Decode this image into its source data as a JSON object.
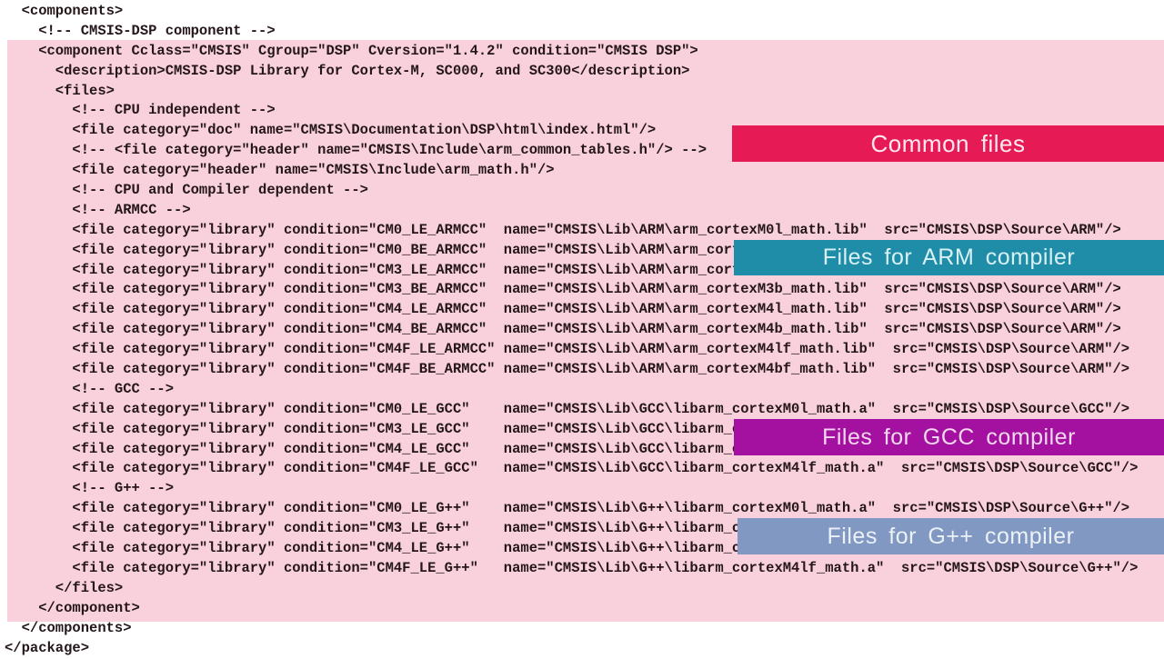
{
  "code_text_color": "#241619",
  "highlight": {
    "color": "#f8d1dc"
  },
  "code": {
    "lines": [
      "  <components>",
      "    <!-- CMSIS-DSP component -->",
      "    <component Cclass=\"CMSIS\" Cgroup=\"DSP\" Cversion=\"1.4.2\" condition=\"CMSIS DSP\">",
      "      <description>CMSIS-DSP Library for Cortex-M, SC000, and SC300</description>",
      "      <files>",
      "        <!-- CPU independent -->",
      "        <file category=\"doc\" name=\"CMSIS\\Documentation\\DSP\\html\\index.html\"/>",
      "        <!-- <file category=\"header\" name=\"CMSIS\\Include\\arm_common_tables.h\"/> -->",
      "        <file category=\"header\" name=\"CMSIS\\Include\\arm_math.h\"/>",
      "        <!-- CPU and Compiler dependent -->",
      "        <!-- ARMCC -->",
      "        <file category=\"library\" condition=\"CM0_LE_ARMCC\"  name=\"CMSIS\\Lib\\ARM\\arm_cortexM0l_math.lib\"  src=\"CMSIS\\DSP\\Source\\ARM\"/>",
      "        <file category=\"library\" condition=\"CM0_BE_ARMCC\"  name=\"CMSIS\\Lib\\ARM\\arm_cortexM0b_math.lib\"  src=\"CMSIS\\DSP\\Source\\ARM\"/>",
      "        <file category=\"library\" condition=\"CM3_LE_ARMCC\"  name=\"CMSIS\\Lib\\ARM\\arm_cortexM3l_math.lib\"  src=\"CMSIS\\DSP\\Source\\ARM\"/>",
      "        <file category=\"library\" condition=\"CM3_BE_ARMCC\"  name=\"CMSIS\\Lib\\ARM\\arm_cortexM3b_math.lib\"  src=\"CMSIS\\DSP\\Source\\ARM\"/>",
      "        <file category=\"library\" condition=\"CM4_LE_ARMCC\"  name=\"CMSIS\\Lib\\ARM\\arm_cortexM4l_math.lib\"  src=\"CMSIS\\DSP\\Source\\ARM\"/>",
      "        <file category=\"library\" condition=\"CM4_BE_ARMCC\"  name=\"CMSIS\\Lib\\ARM\\arm_cortexM4b_math.lib\"  src=\"CMSIS\\DSP\\Source\\ARM\"/>",
      "        <file category=\"library\" condition=\"CM4F_LE_ARMCC\" name=\"CMSIS\\Lib\\ARM\\arm_cortexM4lf_math.lib\"  src=\"CMSIS\\DSP\\Source\\ARM\"/>",
      "        <file category=\"library\" condition=\"CM4F_BE_ARMCC\" name=\"CMSIS\\Lib\\ARM\\arm_cortexM4bf_math.lib\"  src=\"CMSIS\\DSP\\Source\\ARM\"/>",
      "        <!-- GCC -->",
      "        <file category=\"library\" condition=\"CM0_LE_GCC\"    name=\"CMSIS\\Lib\\GCC\\libarm_cortexM0l_math.a\"  src=\"CMSIS\\DSP\\Source\\GCC\"/>",
      "        <file category=\"library\" condition=\"CM3_LE_GCC\"    name=\"CMSIS\\Lib\\GCC\\libarm_cortexM3l_math.a\"  src=\"CMSIS\\DSP\\Source\\GCC\"/>",
      "        <file category=\"library\" condition=\"CM4_LE_GCC\"    name=\"CMSIS\\Lib\\GCC\\libarm_cortexM4l_math.a\"  src=\"CMSIS\\DSP\\Source\\GCC\"/>",
      "        <file category=\"library\" condition=\"CM4F_LE_GCC\"   name=\"CMSIS\\Lib\\GCC\\libarm_cortexM4lf_math.a\"  src=\"CMSIS\\DSP\\Source\\GCC\"/>",
      "        <!-- G++ -->",
      "        <file category=\"library\" condition=\"CM0_LE_G++\"    name=\"CMSIS\\Lib\\G++\\libarm_cortexM0l_math.a\"  src=\"CMSIS\\DSP\\Source\\G++\"/>",
      "        <file category=\"library\" condition=\"CM3_LE_G++\"    name=\"CMSIS\\Lib\\G++\\libarm_cortexM3l_math.a\"  src=\"CMSIS\\DSP\\Source\\G++\"/>",
      "        <file category=\"library\" condition=\"CM4_LE_G++\"    name=\"CMSIS\\Lib\\G++\\libarm_cortexM4l_math.a\"  src=\"CMSIS\\DSP\\Source\\G++\"/>",
      "        <file category=\"library\" condition=\"CM4F_LE_G++\"   name=\"CMSIS\\Lib\\G++\\libarm_cortexM4lf_math.a\"  src=\"CMSIS\\DSP\\Source\\G++\"/>",
      "      </files>",
      "    </component>",
      "  </components>",
      "</package>"
    ]
  },
  "banners": [
    {
      "label": "Common files",
      "background": "#e61b56",
      "text_color": "#fde9ef"
    },
    {
      "label": "Files for ARM compiler",
      "background": "#1f8da8",
      "text_color": "#d9f0f4"
    },
    {
      "label": "Files for GCC compiler",
      "background": "#a411a0",
      "text_color": "#f3d9ef"
    },
    {
      "label": "Files for G++ compiler",
      "background": "#8098c2",
      "text_color": "#ecf1f8"
    }
  ]
}
